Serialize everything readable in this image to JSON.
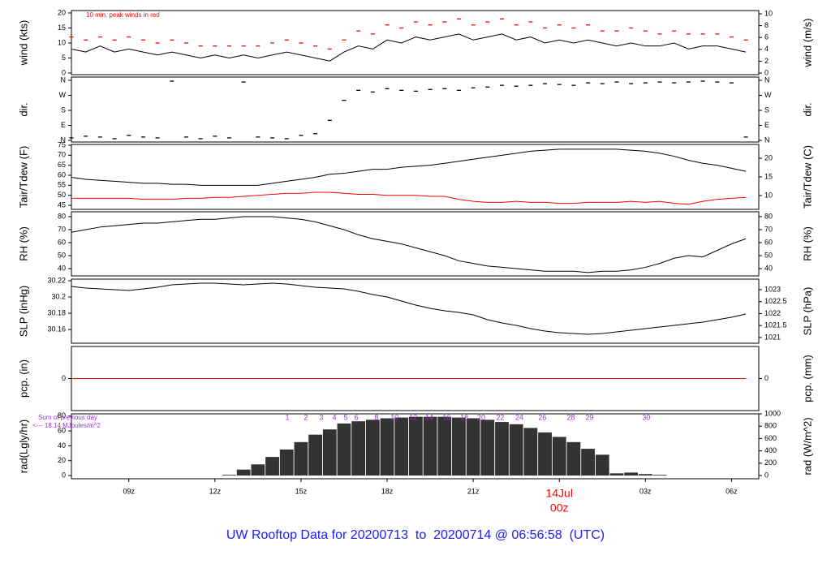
{
  "chart_data": {
    "type": "panels",
    "title": "UW Rooftop Data for 20200713  to  20200714 @ 06:56:58  (UTC)",
    "x": [
      7,
      7.5,
      8,
      8.5,
      9,
      9.5,
      10,
      10.5,
      11,
      11.5,
      12,
      12.5,
      13,
      13.5,
      14,
      14.5,
      15,
      15.5,
      16,
      16.5,
      17,
      17.5,
      18,
      18.5,
      19,
      19.5,
      20,
      20.5,
      21,
      21.5,
      22,
      22.5,
      23,
      23.5,
      24,
      24.5,
      25,
      25.5,
      26,
      26.5,
      27,
      27.5,
      28,
      28.5,
      29,
      29.5,
      30,
      30.5
    ],
    "xlim": [
      7,
      30.95
    ],
    "xticks": [
      {
        "value": 9,
        "label": "09z"
      },
      {
        "value": 12,
        "label": "12z"
      },
      {
        "value": 15,
        "label": "15z"
      },
      {
        "value": 18,
        "label": "18z"
      },
      {
        "value": 21,
        "label": "21z"
      },
      {
        "value": 24,
        "label": "00z",
        "date": "14Jul",
        "color": "#ff0000"
      },
      {
        "value": 27,
        "label": "03z"
      },
      {
        "value": 30,
        "label": "06z"
      }
    ],
    "panels": [
      {
        "type": "line",
        "ylabel": "wind (kts)",
        "y2label": "wind (m/s)",
        "ylim": [
          -0.54,
          20.8
        ],
        "yticks": [
          0,
          5,
          10,
          15,
          20
        ],
        "y2lim": [
          -0.27,
          10.55
        ],
        "y2ticks": [
          0,
          2,
          4,
          6,
          8,
          10
        ],
        "annotation": "10 min. peak winds in red",
        "series": [
          {
            "name": "mean wind",
            "style": "line",
            "color": "#000000",
            "values": [
              8,
              7,
              9,
              7,
              8,
              7,
              6,
              7,
              6,
              5,
              6,
              5,
              6,
              5,
              6,
              7,
              6,
              5,
              4,
              7,
              9,
              8,
              11,
              10,
              12,
              11,
              12,
              13,
              11,
              12,
              13,
              11,
              12,
              10,
              11,
              10,
              11,
              10,
              9,
              10,
              9,
              9,
              10,
              8,
              9,
              9,
              8,
              7
            ]
          },
          {
            "name": "peak wind",
            "style": "dash",
            "color": "#ff0000",
            "values": [
              12,
              11,
              12,
              11,
              12,
              11,
              10,
              11,
              10,
              9,
              9,
              9,
              9,
              9,
              10,
              11,
              10,
              9,
              8,
              11,
              14,
              13,
              16,
              15,
              17,
              16,
              17,
              18,
              16,
              17,
              18,
              16,
              17,
              15,
              16,
              15,
              16,
              14,
              14,
              15,
              14,
              13,
              14,
              13,
              13,
              13,
              12,
              11
            ]
          }
        ]
      },
      {
        "type": "scatter",
        "ylabel": "dir.",
        "y2label": "dir.",
        "ylim": [
          -9.7,
          379.5
        ],
        "yticks": [
          {
            "value": 0,
            "label": "N"
          },
          {
            "value": 90,
            "label": "E"
          },
          {
            "value": 180,
            "label": "S"
          },
          {
            "value": 270,
            "label": "W"
          },
          {
            "value": 360,
            "label": "N"
          }
        ],
        "y2lim": [
          -9.7,
          379.5
        ],
        "y2ticks": [
          {
            "value": 0,
            "label": "N"
          },
          {
            "value": 90,
            "label": "E"
          },
          {
            "value": 180,
            "label": "S"
          },
          {
            "value": 270,
            "label": "W"
          },
          {
            "value": 360,
            "label": "N"
          }
        ],
        "series": [
          {
            "name": "direction",
            "style": "dash",
            "color": "#000000",
            "values": [
              15,
              25,
              20,
              10,
              30,
              20,
              15,
              355,
              20,
              10,
              25,
              15,
              350,
              20,
              15,
              10,
              30,
              40,
              120,
              240,
              300,
              290,
              310,
              300,
              295,
              305,
              310,
              300,
              315,
              320,
              330,
              325,
              330,
              340,
              335,
              330,
              345,
              340,
              350,
              340,
              345,
              350,
              345,
              350,
              355,
              350,
              345,
              20
            ]
          }
        ]
      },
      {
        "type": "line",
        "ylabel": "Tair/Tdew (F)",
        "y2label": "Tair/Tdew (C)",
        "ylim": [
          43,
          75.4
        ],
        "yticks": [
          45,
          50,
          55,
          60,
          65,
          70,
          75
        ],
        "y2lim": [
          6.3,
          23.7
        ],
        "y2ticks": [
          10,
          15,
          20
        ],
        "series": [
          {
            "name": "Tair",
            "style": "line",
            "color": "#000000",
            "values": [
              59,
              58,
              57.5,
              57,
              56.5,
              56,
              56,
              55.5,
              55.5,
              55,
              55,
              55,
              55,
              55,
              56,
              57,
              58,
              59,
              60.5,
              61,
              62,
              63,
              63,
              64,
              64.5,
              65,
              66,
              67,
              68,
              69,
              70,
              71,
              72,
              72.5,
              73,
              73,
              73,
              73,
              73,
              72.5,
              72,
              71,
              69.5,
              67.5,
              66,
              65,
              63.5,
              62
            ]
          },
          {
            "name": "Tdew",
            "style": "line",
            "color": "#ff0000",
            "values": [
              48.5,
              48.5,
              48.5,
              48.5,
              48.5,
              48,
              48,
              48,
              48.5,
              48.5,
              49,
              49,
              49.5,
              50,
              50.5,
              51,
              51,
              51.5,
              51.5,
              51,
              50.5,
              50.5,
              50,
              50,
              50,
              49.5,
              49.5,
              48,
              47,
              46.5,
              46.5,
              47,
              46.5,
              46.5,
              46,
              46,
              46.5,
              46.5,
              46.5,
              47,
              46.5,
              47,
              46,
              45.5,
              47,
              48,
              48.5,
              49
            ]
          }
        ]
      },
      {
        "type": "line",
        "ylabel": "RH (%)",
        "y2label": "RH (%)",
        "ylim": [
          34.4,
          83.75
        ],
        "yticks": [
          40,
          50,
          60,
          70,
          80
        ],
        "y2lim": [
          34.4,
          83.75
        ],
        "y2ticks": [
          40,
          50,
          60,
          70,
          80
        ],
        "series": [
          {
            "name": "RH",
            "style": "line",
            "color": "#000000",
            "values": [
              68,
              70,
              72,
              73,
              74,
              75,
              75,
              76,
              77,
              78,
              78,
              79,
              80,
              80,
              80,
              79,
              78,
              76,
              73,
              70,
              66,
              63,
              61,
              59,
              56,
              53,
              50,
              46,
              44,
              42,
              41,
              40,
              39,
              38,
              38,
              38,
              37,
              38,
              38,
              39,
              41,
              44,
              48,
              50,
              49,
              54,
              59,
              63
            ]
          }
        ]
      },
      {
        "type": "line",
        "ylabel": "SLP (inHg)",
        "y2label": "SLP (hPa)",
        "ylim": [
          30.143,
          30.222
        ],
        "yticks": [
          30.16,
          30.18,
          30.2,
          {
            "value": 30.22,
            "label": "30.22"
          }
        ],
        "y2lim": [
          1020.76,
          1023.44
        ],
        "y2ticks": [
          1021,
          1021.5,
          1022,
          1022.5,
          1023
        ],
        "series": [
          {
            "name": "SLP",
            "style": "line",
            "color": "#000000",
            "values": [
              30.213,
              30.211,
              30.21,
              30.209,
              30.208,
              30.21,
              30.212,
              30.215,
              30.216,
              30.217,
              30.217,
              30.216,
              30.215,
              30.216,
              30.217,
              30.216,
              30.214,
              30.212,
              30.211,
              30.21,
              30.207,
              30.203,
              30.2,
              30.195,
              30.19,
              30.186,
              30.183,
              30.181,
              30.178,
              30.172,
              30.168,
              30.165,
              30.161,
              30.158,
              30.156,
              30.155,
              30.154,
              30.155,
              30.157,
              30.159,
              30.161,
              30.163,
              30.165,
              30.167,
              30.169,
              30.172,
              30.175,
              30.179
            ]
          }
        ]
      },
      {
        "type": "line",
        "ylabel": "pcp. (in)",
        "y2label": "pcp. (mm)",
        "ylim": [
          -1,
          1
        ],
        "yticks": [
          0
        ],
        "y2lim": [
          -1,
          1
        ],
        "y2ticks": [
          0
        ],
        "series": [
          {
            "name": "precipitation",
            "style": "line",
            "color": "#ff0000",
            "values": [
              0,
              0,
              0,
              0,
              0,
              0,
              0,
              0,
              0,
              0,
              0,
              0,
              0,
              0,
              0,
              0,
              0,
              0,
              0,
              0,
              0,
              0,
              0,
              0,
              0,
              0,
              0,
              0,
              0,
              0,
              0,
              0,
              0,
              0,
              0,
              0,
              0,
              0,
              0,
              0,
              0,
              0,
              0,
              0,
              0,
              0,
              0,
              0
            ]
          }
        ]
      },
      {
        "type": "bar",
        "ylabel": "rad(Lgly/hr)",
        "y2label": "rad (W/m^2)",
        "ylim": [
          -4.3,
          83
        ],
        "yticks": [
          0,
          20,
          40,
          60,
          80
        ],
        "y2lim": [
          -52,
          1000
        ],
        "y2ticks": [
          0,
          200,
          400,
          600,
          800,
          1000
        ],
        "annotations": [
          "Sum of previous day",
          "<--- 18.14 MJoules/m^2"
        ],
        "cumulative_labels": {
          "x": [
            14.52,
            15.17,
            15.71,
            16.16,
            16.56,
            16.93,
            17.63,
            18.26,
            18.91,
            19.47,
            20.07,
            20.69,
            21.28,
            21.94,
            22.61,
            23.41,
            24.4,
            25.05,
            27.03
          ],
          "labels": [
            1,
            2,
            3,
            4,
            5,
            6,
            8,
            10,
            12,
            14,
            16,
            18,
            20,
            22,
            24,
            26,
            28,
            29,
            30
          ]
        },
        "series": [
          {
            "name": "radiation",
            "style": "bar",
            "color": "#333333",
            "values": [
              0,
              0,
              0,
              0,
              0,
              0,
              0,
              0,
              0,
              0,
              0,
              1,
              8,
              15,
              25,
              35,
              45,
              55,
              62,
              70,
              73,
              75,
              77,
              78,
              79,
              79,
              79,
              78,
              77,
              75,
              72,
              69,
              64,
              58,
              52,
              45,
              36,
              28,
              3,
              4,
              2,
              1,
              0,
              0,
              0,
              0,
              0,
              0
            ]
          }
        ]
      }
    ]
  }
}
